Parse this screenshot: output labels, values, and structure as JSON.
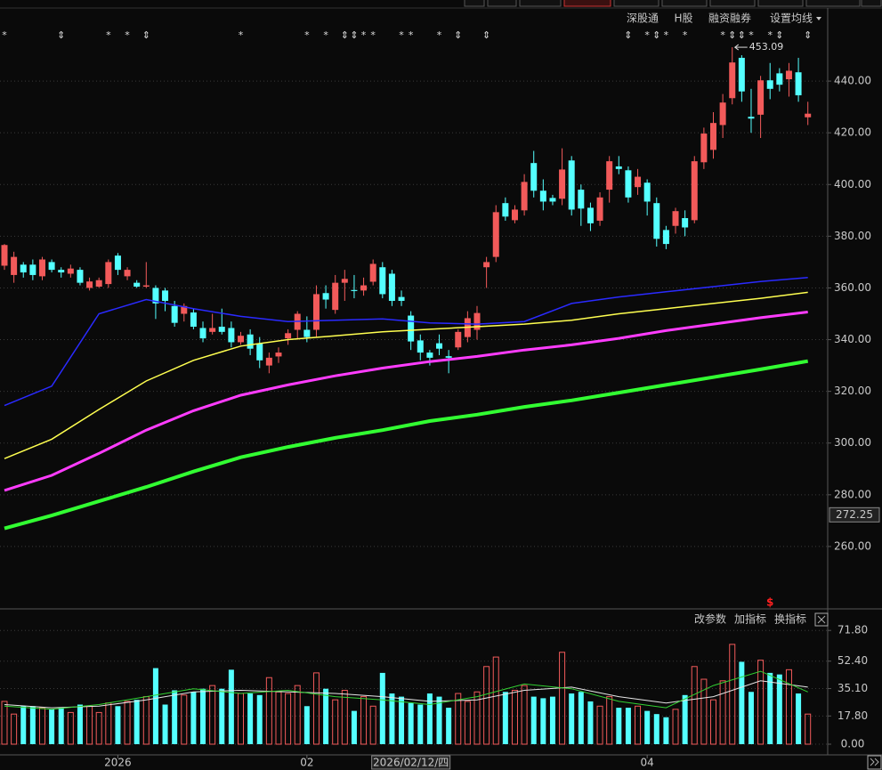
{
  "toolbar": [
    "深股通",
    "H股",
    "融资融券",
    "设置均线"
  ],
  "indicator_buttons": [
    "改参数",
    "加指标",
    "换指标"
  ],
  "chart_data": [
    {
      "type": "candlestick",
      "up_color": "#f25a5a",
      "down_color": "#54ffff",
      "ylim": [
        240,
        460
      ],
      "yticks": [
        {
          "value": 260,
          "label": "260.00"
        },
        {
          "value": 280,
          "label": "280.00"
        },
        {
          "value": 300,
          "label": "300.00"
        },
        {
          "value": 320,
          "label": "320.00"
        },
        {
          "value": 340,
          "label": "340.00"
        },
        {
          "value": 360,
          "label": "360.00"
        },
        {
          "value": 380,
          "label": "380.00"
        },
        {
          "value": 400,
          "label": "400.00"
        },
        {
          "value": 420,
          "label": "420.00"
        },
        {
          "value": 440,
          "label": "440.00"
        }
      ],
      "grid": true,
      "ohlc": [
        [
          368.6,
          377,
          367,
          376.6
        ],
        [
          365,
          374,
          362,
          372
        ],
        [
          369,
          370,
          364,
          366
        ],
        [
          369,
          371,
          363,
          365
        ],
        [
          364.5,
          372,
          363,
          371
        ],
        [
          370,
          371,
          366,
          367
        ],
        [
          367,
          368,
          364,
          366
        ],
        [
          365.5,
          369,
          364,
          367.5
        ],
        [
          367,
          368,
          361,
          362
        ],
        [
          360,
          364,
          359,
          362.5
        ],
        [
          360.5,
          364,
          360,
          363
        ],
        [
          361.5,
          371,
          360,
          370
        ],
        [
          372.5,
          373.5,
          365,
          367
        ],
        [
          364.5,
          368,
          363,
          367
        ],
        [
          362,
          363,
          360,
          360.5
        ],
        [
          360.5,
          370,
          360,
          361
        ],
        [
          360,
          361,
          348,
          354
        ],
        [
          359,
          360,
          351,
          355
        ],
        [
          353,
          355,
          345,
          346.5
        ],
        [
          350,
          354,
          347,
          353
        ],
        [
          350.5,
          352,
          344,
          345
        ],
        [
          344.5,
          347,
          339,
          340.5
        ],
        [
          343,
          350,
          342,
          344.5
        ],
        [
          345,
          352,
          342,
          343
        ],
        [
          344.5,
          347,
          337,
          339
        ],
        [
          339,
          343,
          338,
          341.5
        ],
        [
          342,
          344,
          334,
          336.5
        ],
        [
          338.5,
          341,
          329,
          332
        ],
        [
          330,
          335,
          327,
          333
        ],
        [
          333.5,
          337,
          331,
          335
        ],
        [
          340.5,
          344,
          338,
          342.5
        ],
        [
          343.8,
          351,
          340,
          350
        ],
        [
          343.8,
          349,
          339,
          341
        ],
        [
          343.8,
          361,
          341,
          357.6
        ],
        [
          358,
          361,
          352,
          355.5
        ],
        [
          351.5,
          365,
          350,
          362
        ],
        [
          362,
          367,
          355,
          363.5
        ],
        [
          359.2,
          365,
          356,
          358.8
        ],
        [
          359,
          364,
          357,
          361
        ],
        [
          362.4,
          371,
          361,
          369.3
        ],
        [
          368,
          370,
          356,
          357.6
        ],
        [
          365.5,
          367,
          353,
          355
        ],
        [
          356.5,
          359,
          353,
          355
        ],
        [
          349.3,
          351,
          336,
          339.3
        ],
        [
          339.7,
          342,
          332,
          335
        ],
        [
          335,
          336,
          330,
          333
        ],
        [
          338.6,
          342,
          334,
          336.5
        ],
        [
          333.6,
          336,
          327,
          333
        ],
        [
          337,
          344,
          336,
          343
        ],
        [
          341,
          351,
          339,
          348.3
        ],
        [
          343.8,
          353,
          340,
          350.3
        ],
        [
          368,
          372,
          360,
          370
        ],
        [
          372,
          392,
          370,
          389.3
        ],
        [
          392.8,
          395,
          386,
          387.6
        ],
        [
          386.2,
          392,
          385,
          390.3
        ],
        [
          390,
          404,
          388,
          401
        ],
        [
          408.3,
          413,
          395,
          397.6
        ],
        [
          397.6,
          402,
          390,
          393.4
        ],
        [
          394.8,
          396,
          392,
          393.4
        ],
        [
          394.5,
          414,
          392,
          405.8
        ],
        [
          409.3,
          411,
          388,
          390.3
        ],
        [
          398,
          400,
          384,
          390.7
        ],
        [
          391,
          393,
          382,
          385
        ],
        [
          386,
          397,
          384,
          395
        ],
        [
          398,
          411,
          393,
          409
        ],
        [
          407,
          411,
          404,
          406
        ],
        [
          405.5,
          407,
          393,
          395
        ],
        [
          399,
          406,
          396,
          403
        ],
        [
          400.7,
          402,
          388,
          393.4
        ],
        [
          392.8,
          395,
          376,
          379
        ],
        [
          382.4,
          384,
          375,
          377
        ],
        [
          384,
          391,
          381,
          389.7
        ],
        [
          387,
          390,
          380,
          383.4
        ],
        [
          386.2,
          411,
          385,
          409
        ],
        [
          408.6,
          422,
          406,
          419.7
        ],
        [
          413.4,
          428,
          410,
          423.8
        ],
        [
          423,
          435,
          418,
          431.7
        ],
        [
          433.4,
          453.09,
          431,
          447.2
        ],
        [
          449,
          450,
          432,
          436
        ],
        [
          426.2,
          437,
          420,
          425.5
        ],
        [
          427,
          442,
          418,
          440.3
        ],
        [
          440.3,
          447,
          433,
          437
        ],
        [
          443,
          445,
          436,
          438.6
        ],
        [
          440.7,
          447,
          434,
          444
        ],
        [
          443.4,
          449,
          432,
          434.5
        ],
        [
          426,
          432,
          423,
          427.4
        ]
      ],
      "series": [
        {
          "color": "#2a2aff",
          "x": [
            0,
            5,
            10,
            15,
            20,
            25,
            30,
            35,
            40,
            45,
            50,
            55,
            60,
            65,
            70,
            75,
            80,
            85
          ],
          "values": [
            314.5,
            322,
            350,
            355.5,
            352,
            349,
            347,
            347.5,
            348,
            346.5,
            346,
            347,
            354,
            356.5,
            358.5,
            360.5,
            362.5,
            364
          ]
        },
        {
          "color": "#ffff50",
          "x": [
            0,
            5,
            10,
            15,
            20,
            25,
            30,
            35,
            40,
            45,
            50,
            55,
            60,
            65,
            70,
            75,
            80,
            85
          ],
          "values": [
            294,
            301.5,
            313,
            324,
            332,
            337.5,
            340,
            341.5,
            343,
            344,
            345,
            346,
            347.5,
            350,
            352,
            354,
            356,
            358.3
          ]
        },
        {
          "color": "#ff3cff",
          "x": [
            0,
            5,
            10,
            15,
            20,
            25,
            30,
            35,
            40,
            45,
            50,
            55,
            60,
            65,
            70,
            75,
            80,
            85
          ],
          "values": [
            281.7,
            287.5,
            296,
            305,
            312.5,
            318.5,
            322.5,
            326,
            329,
            331.5,
            333.5,
            336,
            338,
            340.5,
            343.5,
            346,
            348.5,
            350.7
          ]
        },
        {
          "color": "#32ff32",
          "x": [
            0,
            5,
            10,
            15,
            20,
            25,
            30,
            35,
            40,
            45,
            50,
            55,
            60,
            65,
            70,
            75,
            80,
            85
          ],
          "values": [
            267,
            272,
            277.5,
            283,
            289,
            294.5,
            298.5,
            302,
            305,
            308.5,
            311,
            314,
            316.5,
            319.5,
            322.5,
            325.5,
            328.5,
            331.7
          ]
        }
      ],
      "markers": [
        {
          "index": 0,
          "symbol": "*"
        },
        {
          "index": 6,
          "symbol": "⇕"
        },
        {
          "index": 11,
          "symbol": "*"
        },
        {
          "index": 13,
          "symbol": "*"
        },
        {
          "index": 15,
          "symbol": "⇕"
        },
        {
          "index": 25,
          "symbol": "*"
        },
        {
          "index": 32,
          "symbol": "*"
        },
        {
          "index": 34,
          "symbol": "*"
        },
        {
          "index": 36,
          "symbol": "⇕"
        },
        {
          "index": 37,
          "symbol": "⇕"
        },
        {
          "index": 38,
          "symbol": "*"
        },
        {
          "index": 39,
          "symbol": "*"
        },
        {
          "index": 42,
          "symbol": "*"
        },
        {
          "index": 43,
          "symbol": "*"
        },
        {
          "index": 46,
          "symbol": "*"
        },
        {
          "index": 48,
          "symbol": "⇕"
        },
        {
          "index": 51,
          "symbol": "⇕"
        },
        {
          "index": 66,
          "symbol": "⇕"
        },
        {
          "index": 68,
          "symbol": "*"
        },
        {
          "index": 69,
          "symbol": "⇕"
        },
        {
          "index": 70,
          "symbol": "*"
        },
        {
          "index": 72,
          "symbol": "*"
        },
        {
          "index": 76,
          "symbol": "*"
        },
        {
          "index": 77,
          "symbol": "⇕"
        },
        {
          "index": 78,
          "symbol": "⇕"
        },
        {
          "index": 79,
          "symbol": "*"
        },
        {
          "index": 81,
          "symbol": "*"
        },
        {
          "index": 82,
          "symbol": "⇕"
        },
        {
          "index": 85,
          "symbol": "⇕"
        }
      ],
      "high_label": {
        "index": 77,
        "label": "453.09"
      },
      "dividend_marker": {
        "index": 81,
        "symbol": "$"
      },
      "cursor": {
        "index": 43,
        "label": "2026/02/12/四",
        "price": 272.25
      },
      "xlabels": [
        {
          "index": 12,
          "label": "2026"
        },
        {
          "index": 32,
          "label": "02"
        },
        {
          "index": 68,
          "label": "04"
        }
      ]
    },
    {
      "type": "bar",
      "ylim": [
        0,
        75
      ],
      "yticks": [
        {
          "value": 0,
          "label": "0.00"
        },
        {
          "value": 17.8,
          "label": "17.80"
        },
        {
          "value": 35.1,
          "label": "35.10"
        },
        {
          "value": 52.4,
          "label": "52.40"
        },
        {
          "value": 71.8,
          "label": "71.80"
        }
      ],
      "grid": true,
      "values": [
        27,
        19,
        24,
        24,
        23,
        22,
        23,
        20,
        25,
        24,
        20,
        26,
        24,
        27,
        28,
        30,
        48,
        25,
        34,
        31,
        33,
        35,
        37,
        35,
        47,
        32,
        32,
        31,
        42,
        33,
        32,
        37,
        24,
        45,
        35,
        28,
        34,
        21,
        30,
        24,
        45,
        32,
        30,
        26,
        25,
        32,
        30,
        23,
        32,
        27,
        33,
        49,
        55,
        33,
        34,
        37,
        30,
        29,
        30,
        58,
        32,
        33,
        27,
        24,
        30,
        23,
        23,
        24,
        21,
        19,
        17,
        22,
        31,
        49,
        41,
        28,
        40,
        63,
        52,
        33,
        53,
        45,
        44,
        47,
        32,
        19
      ],
      "series": [
        {
          "color": "#e6e6e6",
          "x": [
            0,
            5,
            10,
            15,
            20,
            25,
            30,
            35,
            40,
            45,
            50,
            55,
            60,
            65,
            70,
            75,
            80,
            85
          ],
          "values": [
            25,
            23,
            24,
            28,
            33,
            34,
            33,
            32,
            30,
            27,
            28,
            34,
            36,
            30,
            26,
            30,
            40,
            36
          ]
        },
        {
          "color": "#32d232",
          "x": [
            0,
            5,
            10,
            15,
            20,
            25,
            30,
            35,
            40,
            45,
            50,
            55,
            60,
            65,
            70,
            75,
            80,
            85
          ],
          "values": [
            24,
            22,
            25,
            30,
            35,
            32,
            34,
            30,
            28,
            25,
            30,
            38,
            35,
            27,
            23,
            37,
            46,
            33
          ]
        }
      ]
    }
  ]
}
